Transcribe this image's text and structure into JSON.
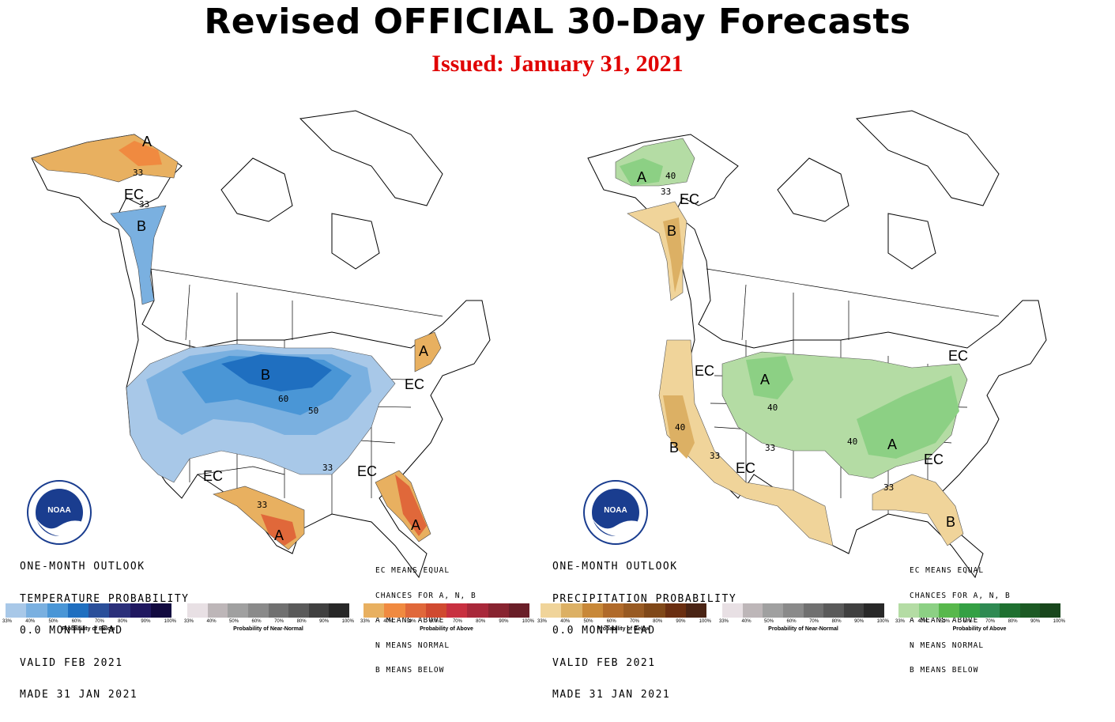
{
  "title": "Revised OFFICIAL 30-Day Forecasts",
  "issued": "Issued: January 31, 2021",
  "colors": {
    "title": "#000000",
    "issued": "#e00000",
    "below_temp": [
      "#a8c8e8",
      "#7ab0e0",
      "#4a96d6",
      "#1f6fc0",
      "#2a4f9a",
      "#2a2f7a",
      "#201860",
      "#120a40"
    ],
    "near_normal": [
      "#e8e0e4",
      "#bdb6b8",
      "#a0a0a0",
      "#8a8a8a",
      "#707070",
      "#5a5a5a",
      "#404040",
      "#282828"
    ],
    "above_temp": [
      "#e8b060",
      "#f08a40",
      "#e0683a",
      "#d04a30",
      "#c83040",
      "#a8283a",
      "#882430",
      "#6a1e28"
    ],
    "below_precip": [
      "#f0d49a",
      "#dcb064",
      "#c88838",
      "#b06a2a",
      "#985a22",
      "#804818",
      "#6a2e10",
      "#4a2414"
    ],
    "above_precip": [
      "#b4dca4",
      "#8cd084",
      "#58b84c",
      "#34a044",
      "#2e8a52",
      "#1e7030",
      "#1c5a24",
      "#18461c"
    ]
  },
  "temperature_map": {
    "info": [
      "ONE-MONTH OUTLOOK",
      "TEMPERATURE PROBABILITY",
      "0.0 MONTH LEAD",
      "VALID FEB 2021",
      "MADE 31 JAN 2021"
    ],
    "legend_note": [
      "EC MEANS EQUAL",
      "CHANCES FOR A, N, B",
      "A MEANS ABOVE",
      "N MEANS NORMAL",
      "B MEANS BELOW"
    ],
    "region_labels": {
      "alaska_a": "A",
      "alaska_ec": "EC",
      "alaska_b": "B",
      "plains_b": "B",
      "ec_sw": "EC",
      "ec_se": "EC",
      "ec_ne": "EC",
      "ne_a": "A",
      "tx_a": "A",
      "fl_a": "A"
    },
    "contour_labels": {
      "c33_ak": "33",
      "c33_ak2": "33",
      "c60": "60",
      "c50": "50",
      "c33_se": "33",
      "c33_tx": "33"
    }
  },
  "precipitation_map": {
    "info": [
      "ONE-MONTH OUTLOOK",
      "PRECIPITATION PROBABILITY",
      "0.0 MONTH LEAD",
      "VALID FEB 2021",
      "MADE 31 JAN 2021"
    ],
    "legend_note": [
      "EC MEANS EQUAL",
      "CHANCES FOR A, N, B",
      "A MEANS ABOVE",
      "N MEANS NORMAL",
      "B MEANS BELOW"
    ],
    "region_labels": {
      "alaska_a": "A",
      "alaska_ec": "EC",
      "pnw_b": "B",
      "ec_west": "EC",
      "north_a": "A",
      "ca_b": "B",
      "ec_sw": "EC",
      "east_a": "A",
      "ec_ne": "EC",
      "ec_se": "EC",
      "fl_b": "B"
    },
    "contour_labels": {
      "c40_ak": "40",
      "c33_ak": "33",
      "c40_n": "40",
      "c33_c": "33",
      "c40_e": "40",
      "c40_ca": "40",
      "c33_sw": "33",
      "c33_fl": "33"
    }
  },
  "colorbars": {
    "below_title": "Probability of Below",
    "normal_title": "Probability of Near-Normal",
    "above_title": "Probability of Above",
    "ticks": [
      "33%",
      "40%",
      "50%",
      "60%",
      "70%",
      "80%",
      "90%",
      "100%"
    ]
  },
  "noaa_logo_text": "NOAA"
}
